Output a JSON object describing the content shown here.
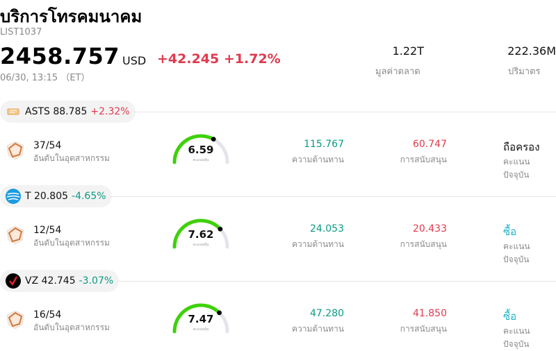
{
  "header": {
    "title": "บริการโทรคมนาคม",
    "code": "LIST1037",
    "price": "2458.757",
    "currency": "USD",
    "change": "+42.245",
    "change_pct": "+1.72%",
    "time": "06/30, 13:15 （ET）",
    "market_cap_value": "1.22T",
    "market_cap_label": "มูลค่าตลาด",
    "volume_value": "222.36M",
    "volume_label": "ปริมาตร"
  },
  "colors": {
    "up": "#e03a4e",
    "down": "#0a9a83",
    "buy": "#1bb4c4",
    "gauge": "#3fd10a"
  },
  "stocks": [
    {
      "ticker": "ASTS",
      "price": "88.785",
      "change_pct": "+2.32%",
      "direction": "up",
      "icon": "asts-satellite-icon",
      "rank": "37/54",
      "rank_label": "อันดับในอุตสาหกรรม",
      "score": "6.59",
      "score_caption": "คะแนนหุ้น",
      "score_value": 6.59,
      "resistance": "115.767",
      "resistance_label": "ความต้านทาน",
      "support": "60.747",
      "support_label": "การสนับสนุน",
      "rating": "ถือครอง",
      "rating_type": "hold",
      "rating_label": "คะแนนปัจจุบัน"
    },
    {
      "ticker": "T",
      "price": "20.805",
      "change_pct": "-4.65%",
      "direction": "down",
      "icon": "att-globe-icon",
      "rank": "12/54",
      "rank_label": "อันดับในอุตสาหกรรม",
      "score": "7.62",
      "score_caption": "คะแนนหุ้น",
      "score_value": 7.62,
      "resistance": "24.053",
      "resistance_label": "ความต้านทาน",
      "support": "20.433",
      "support_label": "การสนับสนุน",
      "rating": "ซื้อ",
      "rating_type": "buy",
      "rating_label": "คะแนนปัจจุบัน"
    },
    {
      "ticker": "VZ",
      "price": "42.745",
      "change_pct": "-3.07%",
      "direction": "down",
      "icon": "verizon-check-icon",
      "rank": "16/54",
      "rank_label": "อันดับในอุตสาหกรรม",
      "score": "7.47",
      "score_caption": "คะแนนหุ้น",
      "score_value": 7.47,
      "resistance": "47.280",
      "resistance_label": "ความต้านทาน",
      "support": "41.850",
      "support_label": "การสนับสนุน",
      "rating": "ซื้อ",
      "rating_type": "buy",
      "rating_label": "คะแนนปัจจุบัน"
    }
  ]
}
